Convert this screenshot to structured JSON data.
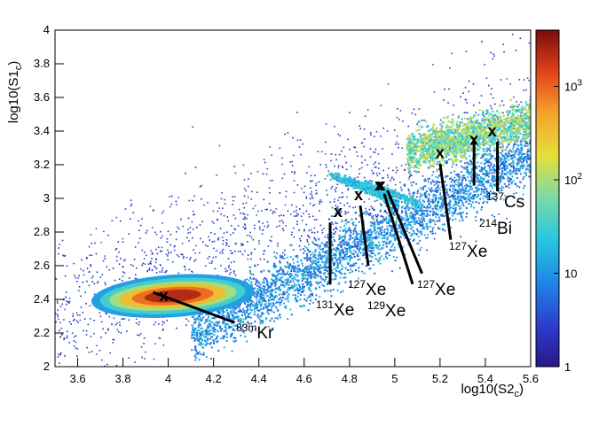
{
  "chart_data": {
    "type": "heatmap",
    "title": "",
    "xlabel": "log10(S2",
    "xlabel_sub": "c",
    "xlabel_close": ")",
    "ylabel": "log10(S1",
    "ylabel_sub": "c",
    "ylabel_close": ")",
    "xlim": [
      3.5,
      5.6
    ],
    "ylim": [
      2,
      4
    ],
    "xticks": [
      3.6,
      3.8,
      4.0,
      4.2,
      4.4,
      4.6,
      4.8,
      5.0,
      5.2,
      5.4,
      5.6
    ],
    "xtick_labels": [
      "3.6",
      "3.8",
      "4",
      "4.2",
      "4.4",
      "4.6",
      "4.8",
      "5",
      "5.2",
      "5.4",
      "5.6"
    ],
    "yticks": [
      2.0,
      2.2,
      2.4,
      2.6,
      2.8,
      3.0,
      3.2,
      3.4,
      3.6,
      3.8,
      4.0
    ],
    "ytick_labels": [
      "2",
      "2.2",
      "2.4",
      "2.6",
      "2.8",
      "3",
      "3.2",
      "3.4",
      "3.6",
      "3.8",
      "4"
    ],
    "colorbar": {
      "scale": "log",
      "range": [
        1,
        4000
      ],
      "tick_labels": [
        {
          "base": "10",
          "exp": "3",
          "value": 1000
        },
        {
          "base": "10",
          "exp": "2",
          "value": 100
        },
        {
          "base": "10",
          "exp": "",
          "value": 10
        },
        {
          "base": "1",
          "exp": "",
          "value": 1
        }
      ],
      "colors": [
        "#29178a",
        "#2b3fd0",
        "#1f86e6",
        "#25c7e0",
        "#7bd9a8",
        "#e3e03a",
        "#f5a52a",
        "#e2441b",
        "#7a0c0c"
      ]
    },
    "marker_symbol": "x",
    "peaks": [
      {
        "id": "kr83m",
        "x": 3.98,
        "y": 2.42,
        "sup": "83m",
        "element": "Kr"
      },
      {
        "id": "xe131",
        "x": 4.75,
        "y": 2.92,
        "sup": "131",
        "element": "Xe"
      },
      {
        "id": "xe127a",
        "x": 4.84,
        "y": 3.02,
        "sup": "127",
        "element": "Xe"
      },
      {
        "id": "xe129",
        "x": 4.93,
        "y": 3.08,
        "sup": "129",
        "element": "Xe"
      },
      {
        "id": "xe127b",
        "x": 4.94,
        "y": 3.08,
        "sup": "127",
        "element": "Xe"
      },
      {
        "id": "xe127c",
        "x": 5.2,
        "y": 3.27,
        "sup": "127",
        "element": "Xe"
      },
      {
        "id": "bi214",
        "x": 5.35,
        "y": 3.35,
        "sup": "214",
        "element": "Bi"
      },
      {
        "id": "cs137",
        "x": 5.43,
        "y": 3.4,
        "sup": "137",
        "element": "Cs"
      }
    ]
  }
}
